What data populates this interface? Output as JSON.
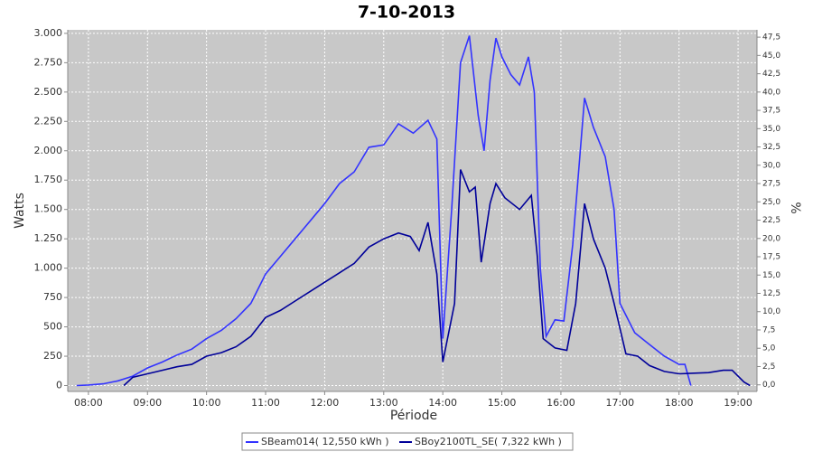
{
  "chart_data": {
    "type": "line",
    "title": "7-10-2013",
    "x_label": "Période",
    "y_label": "Watts",
    "y2_label": "%",
    "xlim": [
      7.65,
      19.32
    ],
    "xticks": [
      {
        "value": 8,
        "label": "08:00"
      },
      {
        "value": 9,
        "label": "09:00"
      },
      {
        "value": 10,
        "label": "10:00"
      },
      {
        "value": 11,
        "label": "11:00"
      },
      {
        "value": 12,
        "label": "12:00"
      },
      {
        "value": 13,
        "label": "13:00"
      },
      {
        "value": 14,
        "label": "14:00"
      },
      {
        "value": 15,
        "label": "15:00"
      },
      {
        "value": 16,
        "label": "16:00"
      },
      {
        "value": 17,
        "label": "17:00"
      },
      {
        "value": 18,
        "label": "18:00"
      },
      {
        "value": 19,
        "label": "19:00"
      }
    ],
    "ylim": [
      -50,
      3030
    ],
    "yticks": [
      0,
      250,
      500,
      750,
      {
        "value": 1000,
        "label": "1.000"
      },
      {
        "value": 1250,
        "label": "1.250"
      },
      {
        "value": 1500,
        "label": "1.500"
      },
      {
        "value": 1750,
        "label": "1.750"
      },
      {
        "value": 2000,
        "label": "2.000"
      },
      {
        "value": 2250,
        "label": "2.250"
      },
      {
        "value": 2500,
        "label": "2.500"
      },
      {
        "value": 2750,
        "label": "2.750"
      },
      {
        "value": 3000,
        "label": "3.000"
      }
    ],
    "y2lim": [
      -0.9,
      48.5
    ],
    "y2ticks": [
      {
        "value": 0,
        "label": "0,0"
      },
      {
        "value": 2.5,
        "label": "2,5"
      },
      {
        "value": 5,
        "label": "5,0"
      },
      {
        "value": 7.5,
        "label": "7,5"
      },
      {
        "value": 10,
        "label": "10,0"
      },
      {
        "value": 12.5,
        "label": "12,5"
      },
      {
        "value": 15,
        "label": "15,0"
      },
      {
        "value": 17.5,
        "label": "17,5"
      },
      {
        "value": 20,
        "label": "20,0"
      },
      {
        "value": 22.5,
        "label": "22,5"
      },
      {
        "value": 25,
        "label": "25,0"
      },
      {
        "value": 27.5,
        "label": "27,5"
      },
      {
        "value": 30,
        "label": "30,0"
      },
      {
        "value": 32.5,
        "label": "32,5"
      },
      {
        "value": 35,
        "label": "35,0"
      },
      {
        "value": 37.5,
        "label": "37,5"
      },
      {
        "value": 40,
        "label": "40,0"
      },
      {
        "value": 42.5,
        "label": "42,5"
      },
      {
        "value": 45,
        "label": "45,0"
      },
      {
        "value": 47.5,
        "label": "47,5"
      }
    ],
    "grid": true,
    "legend": "bottom",
    "series": [
      {
        "name": "SBeam014( 12,550 kWh )",
        "color": "#3333ff",
        "x": [
          7.8,
          8.0,
          8.25,
          8.5,
          8.75,
          9.0,
          9.25,
          9.5,
          9.75,
          10.0,
          10.25,
          10.5,
          10.75,
          11.0,
          11.25,
          11.5,
          11.75,
          12.0,
          12.25,
          12.5,
          12.75,
          13.0,
          13.25,
          13.5,
          13.75,
          13.9,
          14.0,
          14.15,
          14.3,
          14.45,
          14.6,
          14.7,
          14.8,
          14.9,
          15.0,
          15.15,
          15.3,
          15.45,
          15.55,
          15.65,
          15.75,
          15.9,
          16.05,
          16.2,
          16.4,
          16.55,
          16.75,
          16.9,
          17.0,
          17.25,
          17.5,
          17.75,
          18.0,
          18.1,
          18.2
        ],
        "values": [
          0,
          5,
          15,
          40,
          80,
          150,
          200,
          260,
          310,
          400,
          470,
          570,
          700,
          950,
          1100,
          1250,
          1400,
          1550,
          1720,
          1820,
          2030,
          2050,
          2230,
          2150,
          2260,
          2100,
          400,
          1500,
          2750,
          2980,
          2300,
          2000,
          2600,
          2960,
          2800,
          2650,
          2560,
          2800,
          2500,
          1000,
          420,
          560,
          550,
          1200,
          2450,
          2200,
          1950,
          1500,
          700,
          450,
          350,
          250,
          180,
          180,
          0
        ]
      },
      {
        "name": "SBoy2100TL_SE( 7,322 kWh )",
        "color": "#000099",
        "x": [
          8.6,
          8.75,
          9.0,
          9.25,
          9.5,
          9.75,
          10.0,
          10.25,
          10.5,
          10.75,
          11.0,
          11.25,
          11.5,
          11.75,
          12.0,
          12.25,
          12.5,
          12.75,
          13.0,
          13.25,
          13.45,
          13.6,
          13.75,
          13.9,
          14.0,
          14.2,
          14.3,
          14.45,
          14.55,
          14.65,
          14.8,
          14.9,
          15.05,
          15.3,
          15.5,
          15.6,
          15.7,
          15.9,
          16.1,
          16.25,
          16.4,
          16.55,
          16.75,
          16.9,
          17.1,
          17.3,
          17.5,
          17.75,
          18.0,
          18.5,
          18.75,
          18.9,
          19.1,
          19.2
        ],
        "values": [
          0,
          70,
          100,
          130,
          160,
          180,
          250,
          280,
          330,
          420,
          580,
          640,
          720,
          800,
          880,
          960,
          1040,
          1180,
          1250,
          1300,
          1270,
          1150,
          1390,
          950,
          200,
          700,
          1840,
          1650,
          1690,
          1050,
          1550,
          1720,
          1600,
          1500,
          1620,
          1100,
          400,
          320,
          300,
          700,
          1550,
          1250,
          1000,
          700,
          270,
          250,
          170,
          120,
          100,
          110,
          130,
          130,
          30,
          0
        ]
      }
    ]
  }
}
